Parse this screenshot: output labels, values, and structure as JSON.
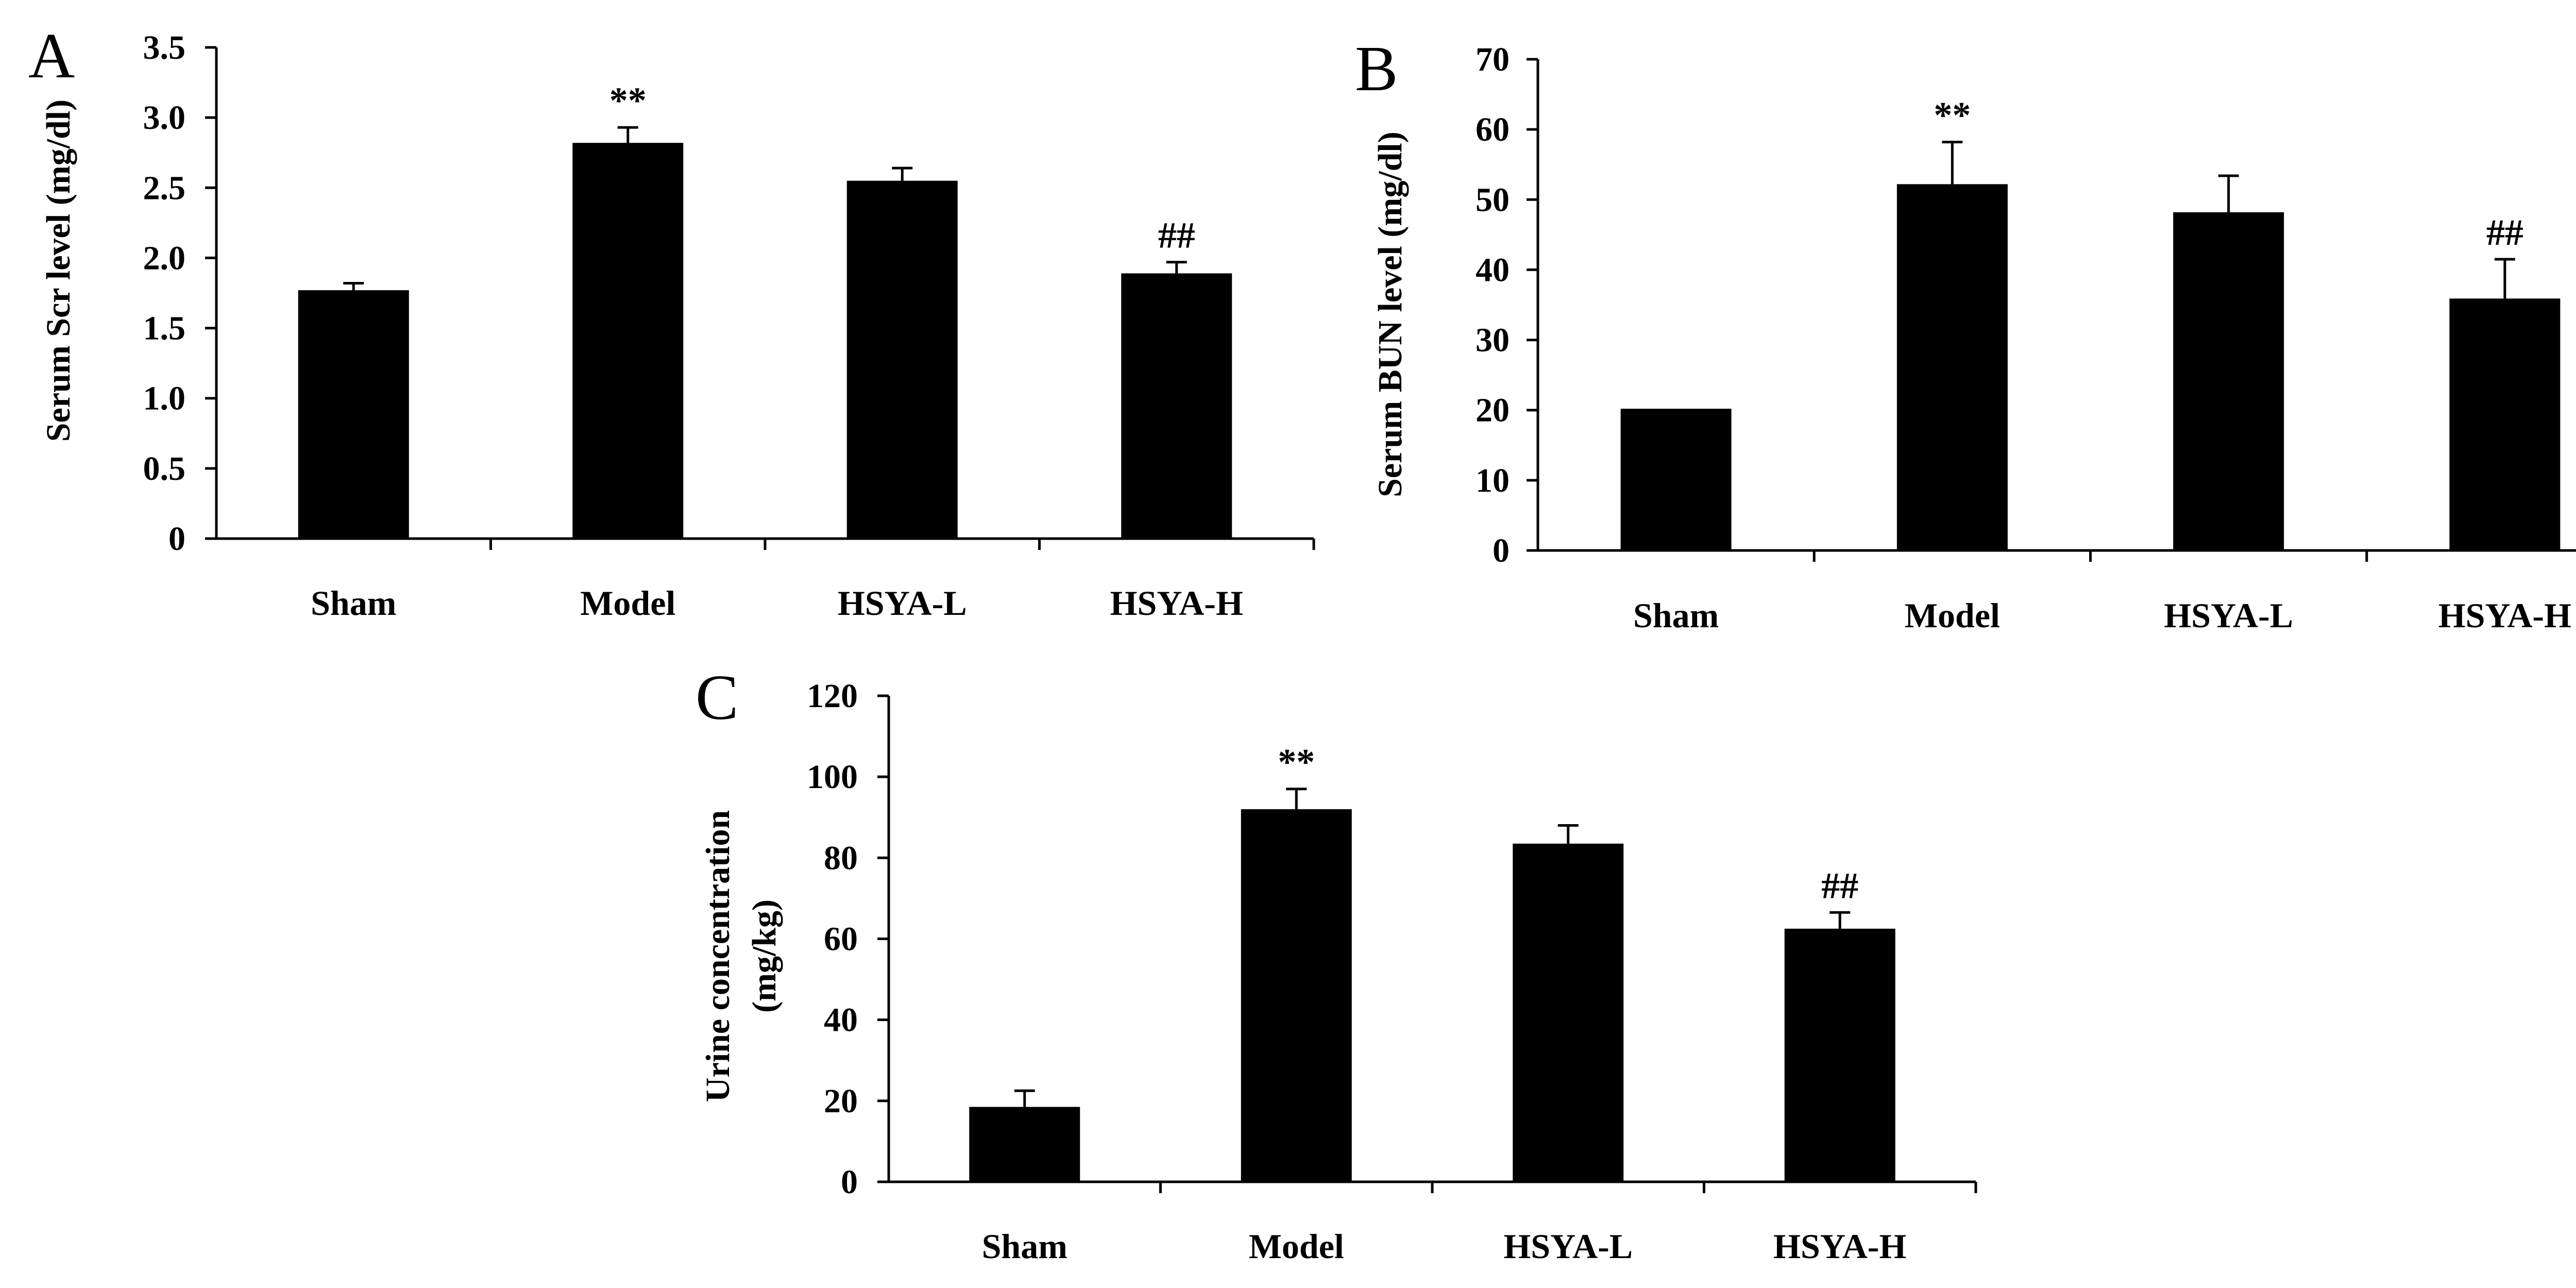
{
  "chart_data": [
    {
      "panel_label": "A",
      "type": "bar",
      "categories": [
        "Sham",
        "Model",
        "HSYA-L",
        "HSYA-H"
      ],
      "values": [
        1.77,
        2.82,
        2.55,
        1.89
      ],
      "errors": [
        0.05,
        0.11,
        0.09,
        0.08
      ],
      "annotations": [
        "",
        "**",
        "",
        "##"
      ],
      "ylabel": "Serum Scr level (mg/dl)",
      "ylim": [
        0,
        3.5
      ],
      "yticks": [
        0,
        0.5,
        1.0,
        1.5,
        2.0,
        2.5,
        3.0,
        3.5
      ],
      "ytick_labels": [
        "0",
        "0.5",
        "1.0",
        "1.5",
        "2.0",
        "2.5",
        "3.0",
        "3.5"
      ]
    },
    {
      "panel_label": "B",
      "type": "bar",
      "categories": [
        "Sham",
        "Model",
        "HSYA-L",
        "HSYA-H"
      ],
      "values": [
        20.2,
        52.2,
        48.2,
        35.9
      ],
      "errors": [
        0.0,
        6.0,
        5.2,
        5.6
      ],
      "annotations": [
        "",
        "**",
        "",
        "##"
      ],
      "ylabel": "Serum BUN level (mg/dl)",
      "ylim": [
        0,
        70
      ],
      "yticks": [
        0,
        10,
        20,
        30,
        40,
        50,
        60,
        70
      ],
      "ytick_labels": [
        "0",
        "10",
        "20",
        "30",
        "40",
        "50",
        "60",
        "70"
      ]
    },
    {
      "panel_label": "C",
      "type": "bar",
      "categories": [
        "Sham",
        "Model",
        "HSYA-L",
        "HSYA-H"
      ],
      "values": [
        18.5,
        92.0,
        83.5,
        62.5
      ],
      "errors": [
        4.0,
        5.0,
        4.5,
        4.0
      ],
      "annotations": [
        "",
        "**",
        "",
        "##"
      ],
      "ylabel_lines": [
        "Urine concentration",
        "(mg/kg)"
      ],
      "ylim": [
        0,
        120
      ],
      "yticks": [
        0,
        20,
        40,
        60,
        80,
        100,
        120
      ],
      "ytick_labels": [
        "0",
        "20",
        "40",
        "60",
        "80",
        "100",
        "120"
      ]
    }
  ]
}
